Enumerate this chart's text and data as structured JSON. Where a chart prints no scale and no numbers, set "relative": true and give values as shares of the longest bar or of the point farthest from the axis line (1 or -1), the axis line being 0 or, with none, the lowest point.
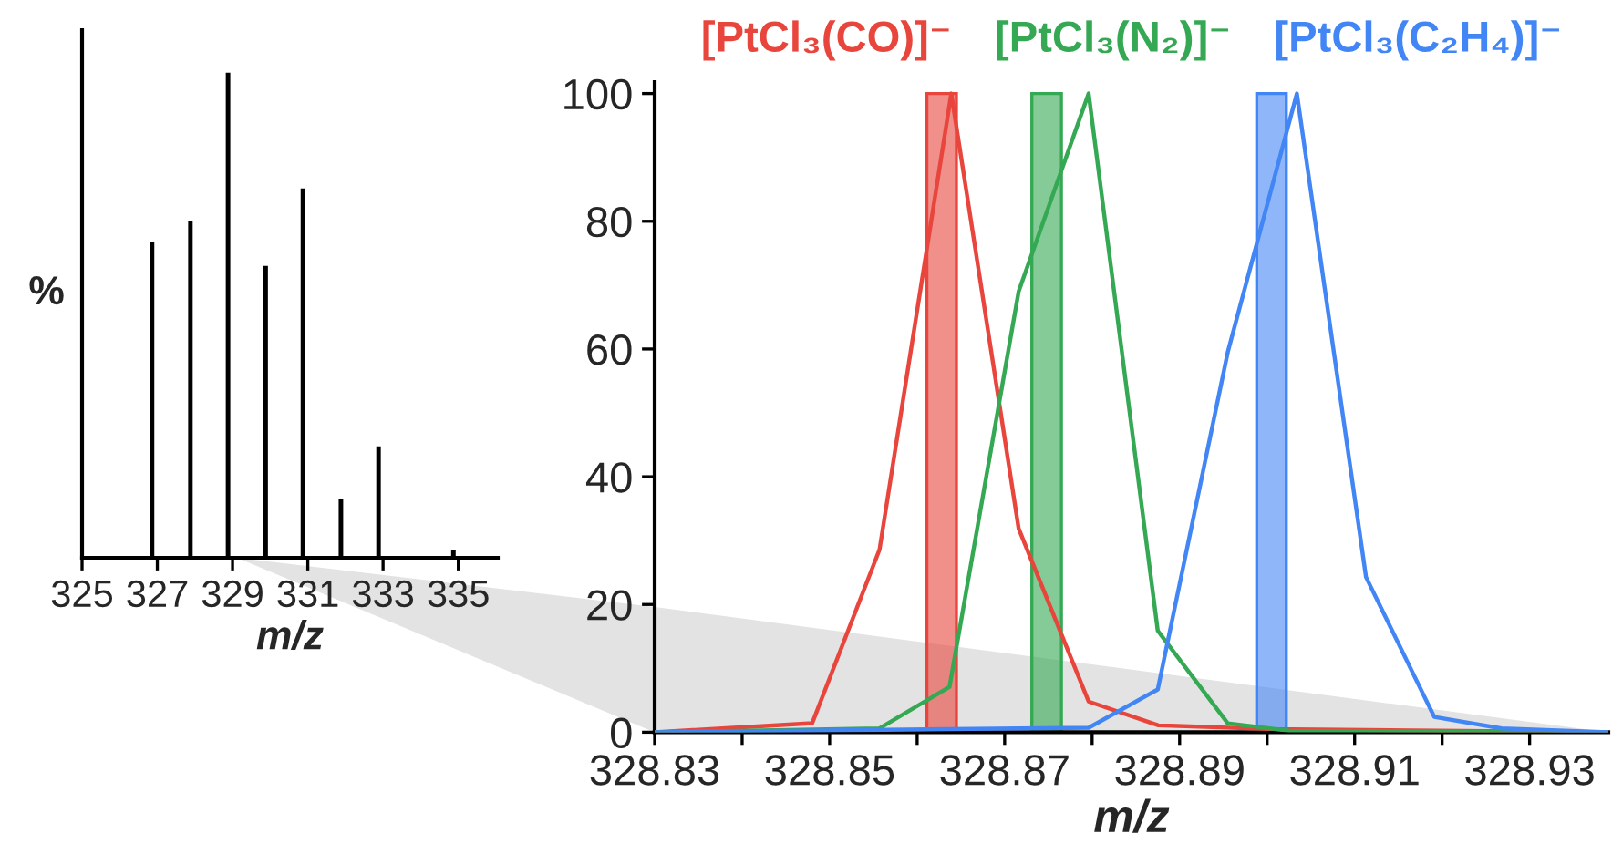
{
  "chart_data": [
    {
      "type": "bar",
      "relative": true,
      "x": [
        326.86,
        327.88,
        328.88,
        329.88,
        330.87,
        331.88,
        332.88,
        334.87
      ],
      "values": [
        0.65,
        0.694,
        1,
        0.601,
        0.761,
        0.119,
        0.228,
        0.015
      ],
      "color": "#000000",
      "xlim": [
        325,
        336.05
      ],
      "xticks": [
        325,
        327,
        329,
        331,
        333,
        335
      ],
      "xlabel": "m/z",
      "ylabel": "%",
      "tick_labels": "x",
      "legend": false,
      "grid": false
    },
    {
      "type": "line",
      "xlim": [
        328.83,
        328.939
      ],
      "ylim": [
        0,
        101.8
      ],
      "yticks": [
        0,
        20,
        40,
        60,
        80,
        100
      ],
      "xticks": [
        328.83,
        {
          "value": 328.84,
          "label": null
        },
        328.85,
        {
          "value": 328.86,
          "label": null
        },
        328.87,
        {
          "value": 328.88,
          "label": null
        },
        328.89,
        {
          "value": 328.9,
          "label": null
        },
        328.91,
        {
          "value": 328.92,
          "label": null
        },
        328.93
      ],
      "xlabel": "m/z",
      "legend": "top",
      "grid": false,
      "series": [
        {
          "type": "bar",
          "color": "#e8453c",
          "x": [
            328.8628
          ],
          "values": [
            100
          ]
        },
        {
          "type": "bar",
          "color": "#34a853",
          "x": [
            328.8748
          ],
          "values": [
            100
          ]
        },
        {
          "type": "bar",
          "color": "#4285f4",
          "x": [
            328.9005
          ],
          "values": [
            100
          ]
        },
        {
          "name": "[PtCl₃(CO)]⁻",
          "color": "#e8453c",
          "x": [
            328.83,
            328.848,
            328.8557,
            328.8639,
            328.8716,
            328.8796,
            328.8875,
            328.9,
            328.939
          ],
          "values": [
            0,
            1.4,
            28.6,
            100,
            31.9,
            4.8,
            1.1,
            0.5,
            0
          ]
        },
        {
          "name": "[PtCl₃(N₂)]⁻",
          "color": "#34a853",
          "x": [
            328.83,
            328.8557,
            328.8637,
            328.8716,
            328.8796,
            328.8875,
            328.8955,
            328.9027,
            328.939
          ],
          "values": [
            0,
            0.6,
            7.1,
            69,
            100,
            15.9,
            1.4,
            0.2,
            0
          ]
        },
        {
          "name": "[PtCl₃(C₂H₄)]⁻",
          "color": "#4285f4",
          "x": [
            328.83,
            328.8796,
            328.8875,
            328.8955,
            328.9034,
            328.9113,
            328.9191,
            328.9268,
            328.939
          ],
          "values": [
            0,
            0.7,
            6.7,
            59.5,
            100,
            24.3,
            2.4,
            0.6,
            0
          ]
        }
      ]
    }
  ]
}
